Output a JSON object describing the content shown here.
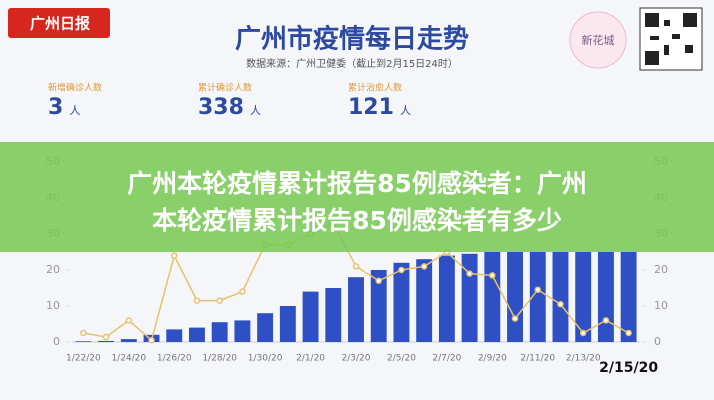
{
  "header": {
    "logo": "广州日报",
    "title": "广州市疫情每日走势",
    "source": "数据来源：广州卫健委（截止到2月15日24时）",
    "badge": "新花城"
  },
  "stats": [
    {
      "label": "新增确诊人数",
      "value": "3",
      "unit": "人"
    },
    {
      "label": "累计确诊人数",
      "value": "338",
      "unit": "人"
    },
    {
      "label": "累计治愈人数",
      "value": "121",
      "unit": "人"
    }
  ],
  "banner": {
    "line1": "广州本轮疫情累计报告85例感染者：广州",
    "line2": "本轮疫情累计报告85例感染者有多少"
  },
  "chart_data": {
    "type": "combo",
    "categories": [
      "1/22/20",
      null,
      "1/24/20",
      null,
      "1/26/20",
      null,
      "1/28/20",
      null,
      "1/30/20",
      null,
      "2/1/20",
      null,
      "2/3/20",
      null,
      "2/5/20",
      null,
      "2/7/20",
      null,
      "2/9/20",
      null,
      "2/11/20",
      null,
      "2/13/20",
      null,
      "2/15/20"
    ],
    "series": [
      {
        "type": "bar",
        "axis": "y2",
        "color": "#2f4fc4",
        "values": [
          0.2,
          0.3,
          0.8,
          2,
          3.5,
          4,
          5.5,
          6,
          8,
          10,
          14,
          15,
          18,
          20,
          22,
          23,
          24,
          24.5,
          25,
          25,
          25,
          25,
          25,
          25,
          25
        ]
      },
      {
        "type": "line",
        "color": "#e8c26a",
        "values": [
          2.5,
          1.4,
          6,
          0.5,
          24,
          11.5,
          11.5,
          14,
          27,
          27,
          30,
          33,
          21,
          17,
          20,
          21,
          25,
          19,
          18.5,
          6.5,
          14.5,
          10.5,
          2.5,
          6,
          2.5
        ]
      }
    ],
    "ylim": [
      0,
      55
    ],
    "yticks": [
      0,
      10,
      20,
      30,
      40,
      50
    ],
    "y2lim": [
      0,
      55
    ],
    "y2ticks": [
      0,
      10,
      20,
      30,
      40,
      50
    ]
  }
}
